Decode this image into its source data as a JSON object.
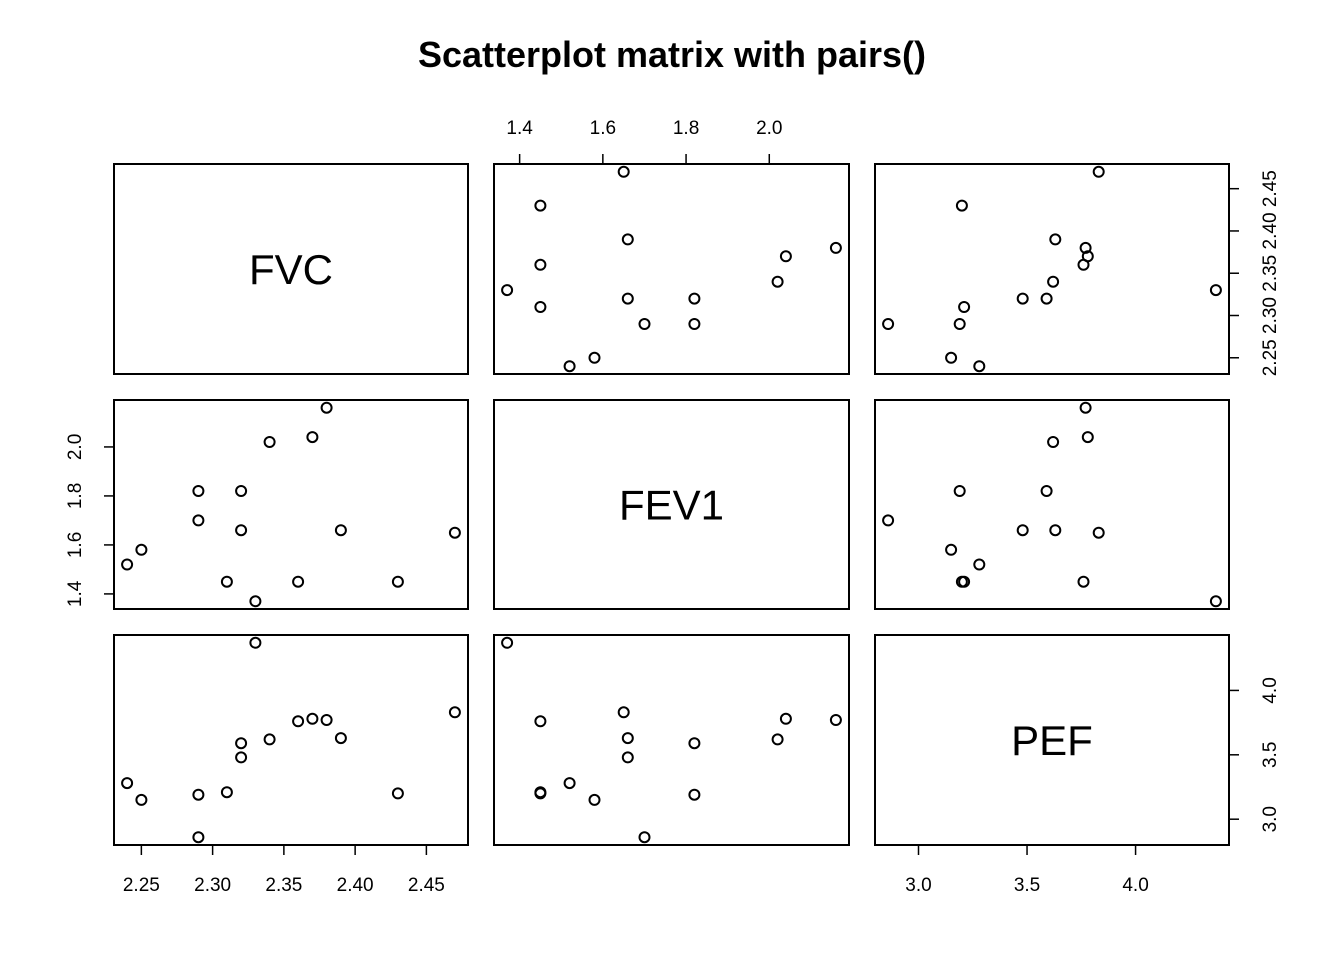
{
  "chart_data": {
    "type": "scatter",
    "subtype": "scatterplot-matrix",
    "title": "Scatterplot matrix with pairs()",
    "variables": [
      {
        "name": "FVC",
        "range": [
          2.24,
          2.47
        ],
        "ticks": [
          "2.25",
          "2.30",
          "2.35",
          "2.40",
          "2.45"
        ]
      },
      {
        "name": "FEV1",
        "range": [
          1.37,
          2.16
        ],
        "ticks": [
          "1.4",
          "1.6",
          "1.8",
          "2.0"
        ]
      },
      {
        "name": "PEF",
        "range": [
          2.86,
          4.37
        ],
        "ticks": [
          "3.0",
          "3.5",
          "4.0"
        ]
      }
    ],
    "observations": {
      "FVC": [
        2.24,
        2.25,
        2.29,
        2.29,
        2.31,
        2.32,
        2.32,
        2.33,
        2.34,
        2.36,
        2.37,
        2.38,
        2.39,
        2.43,
        2.47
      ],
      "FEV1": [
        1.52,
        1.58,
        1.82,
        1.7,
        1.45,
        1.82,
        1.66,
        1.37,
        2.02,
        1.45,
        2.04,
        2.16,
        1.66,
        1.45,
        1.65
      ],
      "PEF": [
        3.28,
        3.15,
        3.19,
        2.86,
        3.21,
        3.59,
        3.48,
        4.37,
        3.62,
        3.76,
        3.78,
        3.77,
        3.63,
        3.2,
        3.83
      ]
    },
    "grid": false,
    "legend": "none"
  }
}
